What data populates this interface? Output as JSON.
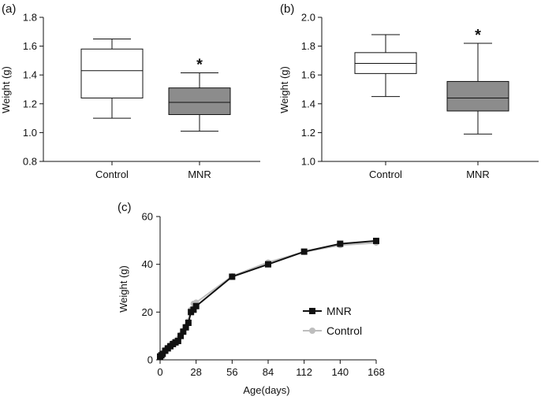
{
  "chart_data": [
    {
      "id": "a",
      "type": "boxplot",
      "panel_label": "(a)",
      "ylabel": "Weight (g)",
      "ylim": [
        0.8,
        1.8
      ],
      "yticks": [
        "0.8",
        "1.0",
        "1.2",
        "1.4",
        "1.6",
        "1.8"
      ],
      "categories": [
        "Control",
        "MNR"
      ],
      "boxes": [
        {
          "name": "Control",
          "min": 1.1,
          "q1": 1.24,
          "median": 1.43,
          "q3": 1.58,
          "max": 1.65,
          "fill": "#ffffff",
          "annotation": ""
        },
        {
          "name": "MNR",
          "min": 1.01,
          "q1": 1.125,
          "median": 1.21,
          "q3": 1.31,
          "max": 1.415,
          "fill": "#8c8c8c",
          "annotation": "*"
        }
      ]
    },
    {
      "id": "b",
      "type": "boxplot",
      "panel_label": "(b)",
      "ylabel": "Weight (g)",
      "ylim": [
        1.0,
        2.0
      ],
      "yticks": [
        "1.0",
        "1.2",
        "1.4",
        "1.6",
        "1.8",
        "2.0"
      ],
      "categories": [
        "Control",
        "MNR"
      ],
      "boxes": [
        {
          "name": "Control",
          "min": 1.45,
          "q1": 1.61,
          "median": 1.68,
          "q3": 1.755,
          "max": 1.88,
          "fill": "#ffffff",
          "annotation": ""
        },
        {
          "name": "MNR",
          "min": 1.19,
          "q1": 1.35,
          "median": 1.44,
          "q3": 1.555,
          "max": 1.82,
          "fill": "#8c8c8c",
          "annotation": "*"
        }
      ]
    },
    {
      "id": "c",
      "type": "line",
      "panel_label": "(c)",
      "xlabel": "Age(days)",
      "ylabel": "Weight (g)",
      "xlim": [
        0,
        168
      ],
      "ylim": [
        0,
        60
      ],
      "xticks": [
        "0",
        "28",
        "56",
        "84",
        "112",
        "140",
        "168"
      ],
      "yticks": [
        "0",
        "20",
        "40",
        "60"
      ],
      "series": [
        {
          "name": "Control",
          "color": "#bdbdbd",
          "marker": "circle",
          "x": [
            0,
            1,
            2,
            4,
            6,
            8,
            10,
            12,
            14,
            16,
            18,
            20,
            22,
            24,
            26,
            28,
            56,
            84,
            112,
            140,
            168
          ],
          "y": [
            1.6,
            2.1,
            2.8,
            4.2,
            5.2,
            6.2,
            7.2,
            8.0,
            8.8,
            10.5,
            12.2,
            14.0,
            16.2,
            21.0,
            23.5,
            24.0,
            35.0,
            40.8,
            45.2,
            48.0,
            49.0
          ]
        },
        {
          "name": "MNR",
          "color": "#111111",
          "marker": "square",
          "x": [
            0,
            1,
            2,
            4,
            6,
            8,
            10,
            12,
            14,
            16,
            18,
            20,
            22,
            24,
            26,
            28,
            56,
            84,
            112,
            140,
            168
          ],
          "y": [
            1.4,
            1.9,
            2.5,
            3.8,
            4.8,
            5.7,
            6.6,
            7.3,
            7.9,
            10.0,
            11.8,
            13.6,
            15.5,
            20.0,
            21.0,
            22.5,
            34.8,
            40.0,
            45.3,
            48.6,
            49.8
          ]
        }
      ],
      "legend": [
        "MNR",
        "Control"
      ]
    }
  ]
}
